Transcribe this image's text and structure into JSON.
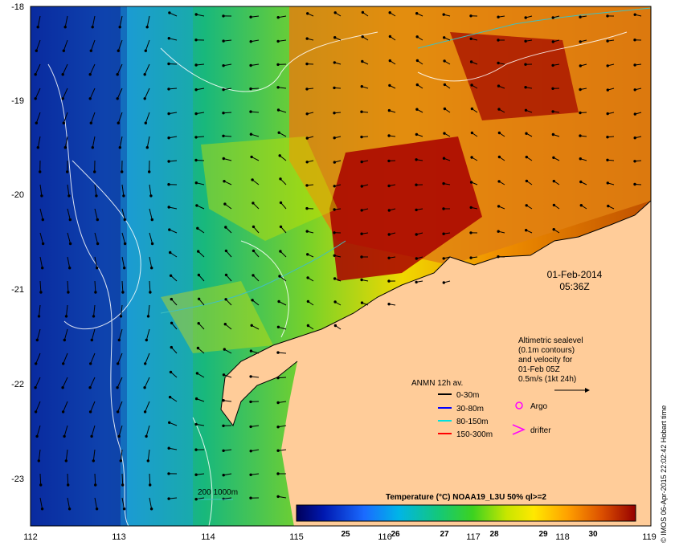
{
  "map": {
    "lon_ticks": [
      "112",
      "113",
      "114",
      "115",
      "116",
      "117",
      "118",
      "119"
    ],
    "lat_ticks": [
      "-18",
      "-19",
      "-20",
      "-21",
      "-22",
      "-23"
    ],
    "date": "01-Feb-2014",
    "time": "05:36Z",
    "credit": "© IMOS 06-Apr-2015 22:02:42 Hobart time",
    "altimetry_lines": [
      "Altimetric sealevel",
      "(0.1m contours)",
      "and velocity for",
      "01-Feb 05Z",
      "0.5m/s (1kt 24h)"
    ],
    "anmn": {
      "title": "ANMN 12h av.",
      "items": [
        {
          "label": "0-30m",
          "color": "#000000"
        },
        {
          "label": "30-80m",
          "color": "#0000ff"
        },
        {
          "label": "80-150m",
          "color": "#00e0e0"
        },
        {
          "label": "150-300m",
          "color": "#ff0000"
        }
      ]
    },
    "argo_label": "Argo",
    "drifter_label": "drifter",
    "isobath_label": "200  1000m",
    "colorbar": {
      "title": "Temperature (°C) NOAA19_L3U 50% ql>=2",
      "ticks": [
        "25",
        "26",
        "27",
        "28",
        "29",
        "30"
      ]
    },
    "colors": {
      "land": "#ffcc99",
      "argo": "#ff00ff",
      "isobath": "#40c0c0"
    }
  }
}
